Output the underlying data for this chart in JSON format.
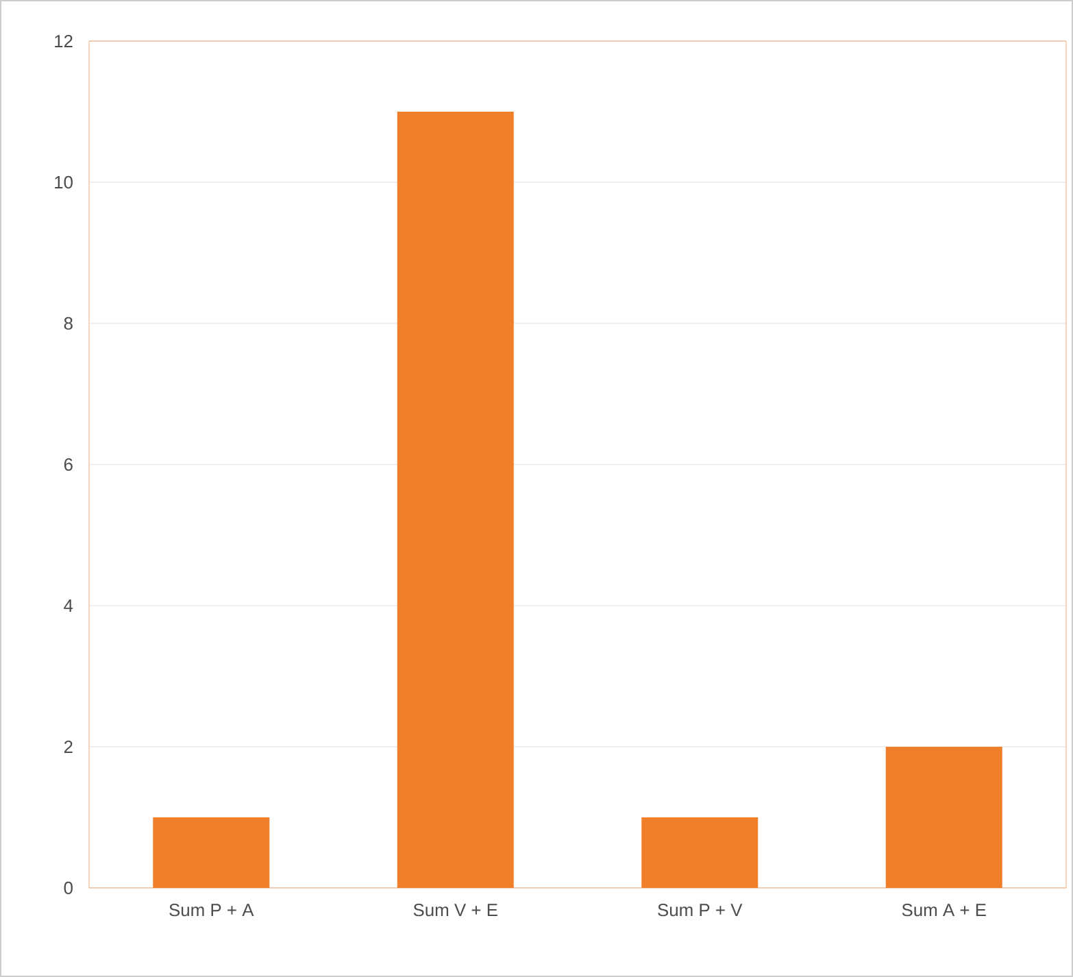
{
  "chart_data": {
    "type": "bar",
    "categories": [
      "Sum P + A",
      "Sum V + E",
      "Sum P + V",
      "Sum A + E"
    ],
    "values": [
      1,
      11,
      1,
      2
    ],
    "color": "#f07f2a",
    "ylim": [
      0,
      12
    ],
    "yticks": [
      0,
      2,
      4,
      6,
      8,
      10,
      12
    ],
    "grid": "y"
  }
}
